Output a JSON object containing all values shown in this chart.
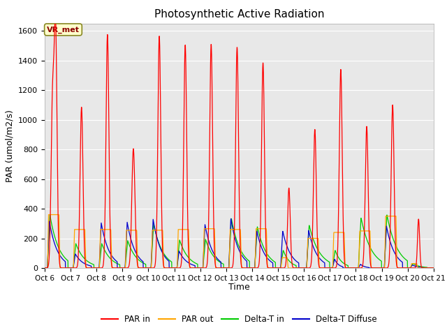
{
  "title": "Photosynthetic Active Radiation",
  "ylabel": "PAR (umol/m2/s)",
  "xlabel": "Time",
  "xlim": [
    0,
    15
  ],
  "ylim": [
    0,
    1650
  ],
  "yticks": [
    0,
    200,
    400,
    600,
    800,
    1000,
    1200,
    1400,
    1600
  ],
  "xtick_labels": [
    "Oct 6",
    "Oct 7",
    "Oct 8",
    "Oct 9",
    "Oct 10",
    "Oct 11",
    "Oct 12",
    "Oct 13",
    "Oct 14",
    "Oct 15",
    "Oct 16",
    "Oct 17",
    "Oct 18",
    "Oct 19",
    "Oct 20",
    "Oct 21"
  ],
  "colors": {
    "PAR_in": "#ff0000",
    "PAR_out": "#ffa500",
    "Delta_T_in": "#00cc00",
    "Delta_T_Diffuse": "#0000cc"
  },
  "annotation_text": "VR_met",
  "background_color": "#e8e8e8",
  "legend_entries": [
    "PAR in",
    "PAR out",
    "Delta-T in",
    "Delta-T Diffuse"
  ]
}
